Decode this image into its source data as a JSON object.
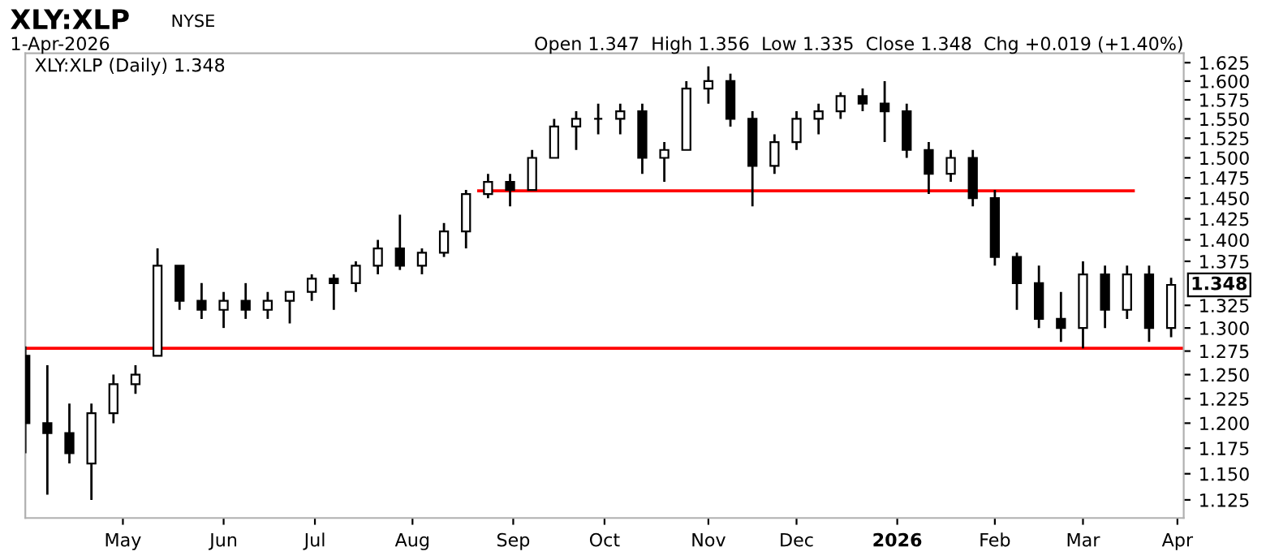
{
  "chart_data": {
    "type": "candlestick",
    "title": "XLY:XLP",
    "color": "#000000",
    "log": "y",
    "annotations": [
      "NYSE",
      "1-Apr-2026",
      "Open 1.347  High 1.356  Low 1.335  Close 1.348  Chg +0.019 (+1.40%)",
      "XLY:XLP (Daily) 1.348",
      {
        "text": "1.348",
        "x": "2026-04-01",
        "y": 1.348
      }
    ],
    "x": [
      "2025-03-31",
      "2025-04-07",
      "2025-04-14",
      "2025-04-21",
      "2025-04-28",
      "2025-05-05",
      "2025-05-12",
      "2025-05-19",
      "2025-05-26",
      "2025-06-02",
      "2025-06-09",
      "2025-06-16",
      "2025-06-23",
      "2025-06-30",
      "2025-07-07",
      "2025-07-14",
      "2025-07-21",
      "2025-07-28",
      "2025-08-04",
      "2025-08-11",
      "2025-08-18",
      "2025-08-25",
      "2025-09-01",
      "2025-09-08",
      "2025-09-15",
      "2025-09-22",
      "2025-09-29",
      "2025-10-06",
      "2025-10-13",
      "2025-10-20",
      "2025-10-27",
      "2025-11-03",
      "2025-11-10",
      "2025-11-17",
      "2025-11-24",
      "2025-12-01",
      "2025-12-08",
      "2025-12-15",
      "2025-12-22",
      "2025-12-29",
      "2026-01-05",
      "2026-01-12",
      "2026-01-19",
      "2026-01-26",
      "2026-02-02",
      "2026-02-09",
      "2026-02-16",
      "2026-02-23",
      "2026-03-02",
      "2026-03-09",
      "2026-03-16",
      "2026-03-23",
      "2026-03-30"
    ],
    "ohlc": [
      [
        1.27,
        1.28,
        1.17,
        1.2
      ],
      [
        1.2,
        1.26,
        1.13,
        1.19
      ],
      [
        1.19,
        1.22,
        1.16,
        1.17
      ],
      [
        1.16,
        1.22,
        1.125,
        1.21
      ],
      [
        1.21,
        1.25,
        1.2,
        1.24
      ],
      [
        1.24,
        1.26,
        1.23,
        1.25
      ],
      [
        1.27,
        1.39,
        1.27,
        1.37
      ],
      [
        1.37,
        1.37,
        1.32,
        1.33
      ],
      [
        1.33,
        1.35,
        1.31,
        1.32
      ],
      [
        1.32,
        1.34,
        1.3,
        1.33
      ],
      [
        1.33,
        1.35,
        1.31,
        1.32
      ],
      [
        1.32,
        1.34,
        1.31,
        1.33
      ],
      [
        1.33,
        1.34,
        1.305,
        1.34
      ],
      [
        1.34,
        1.36,
        1.33,
        1.355
      ],
      [
        1.355,
        1.36,
        1.32,
        1.35
      ],
      [
        1.35,
        1.375,
        1.34,
        1.37
      ],
      [
        1.37,
        1.4,
        1.36,
        1.39
      ],
      [
        1.39,
        1.43,
        1.365,
        1.37
      ],
      [
        1.37,
        1.39,
        1.36,
        1.385
      ],
      [
        1.385,
        1.42,
        1.38,
        1.41
      ],
      [
        1.41,
        1.46,
        1.39,
        1.455
      ],
      [
        1.455,
        1.48,
        1.45,
        1.47
      ],
      [
        1.47,
        1.48,
        1.44,
        1.46
      ],
      [
        1.46,
        1.51,
        1.46,
        1.5
      ],
      [
        1.5,
        1.55,
        1.5,
        1.54
      ],
      [
        1.54,
        1.56,
        1.51,
        1.55
      ],
      [
        1.55,
        1.57,
        1.53,
        1.55
      ],
      [
        1.55,
        1.57,
        1.53,
        1.56
      ],
      [
        1.56,
        1.57,
        1.48,
        1.5
      ],
      [
        1.5,
        1.52,
        1.47,
        1.51
      ],
      [
        1.51,
        1.6,
        1.51,
        1.59
      ],
      [
        1.59,
        1.62,
        1.57,
        1.6
      ],
      [
        1.6,
        1.61,
        1.54,
        1.55
      ],
      [
        1.55,
        1.56,
        1.44,
        1.49
      ],
      [
        1.49,
        1.53,
        1.48,
        1.52
      ],
      [
        1.52,
        1.56,
        1.51,
        1.55
      ],
      [
        1.55,
        1.57,
        1.53,
        1.56
      ],
      [
        1.56,
        1.585,
        1.55,
        1.58
      ],
      [
        1.58,
        1.59,
        1.56,
        1.57
      ],
      [
        1.57,
        1.6,
        1.52,
        1.56
      ],
      [
        1.56,
        1.57,
        1.5,
        1.51
      ],
      [
        1.51,
        1.52,
        1.455,
        1.48
      ],
      [
        1.48,
        1.51,
        1.47,
        1.5
      ],
      [
        1.5,
        1.51,
        1.44,
        1.45
      ],
      [
        1.45,
        1.46,
        1.37,
        1.38
      ],
      [
        1.38,
        1.385,
        1.32,
        1.35
      ],
      [
        1.35,
        1.37,
        1.3,
        1.31
      ],
      [
        1.31,
        1.34,
        1.285,
        1.3
      ],
      [
        1.3,
        1.375,
        1.278,
        1.36
      ],
      [
        1.36,
        1.37,
        1.3,
        1.32
      ],
      [
        1.32,
        1.37,
        1.31,
        1.36
      ],
      [
        1.36,
        1.37,
        1.285,
        1.3
      ],
      [
        1.3,
        1.356,
        1.29,
        1.348
      ]
    ],
    "series": [
      {
        "type": "line",
        "x": [
          "2025-08-22",
          "2026-03-18"
        ],
        "values": [
          1.459,
          1.459
        ],
        "color": "#ff0000"
      }
    ],
    "ref_lines": [
      {
        "axis": "y",
        "value": 1.278,
        "color": "#ff0000"
      }
    ],
    "xlim": [
      "2025-03-31",
      "2026-04-03"
    ],
    "xticks": [
      {
        "value": "2025-05-01",
        "label": "May"
      },
      {
        "value": "2025-06-02",
        "label": "Jun"
      },
      {
        "value": "2025-07-01",
        "label": "Jul"
      },
      {
        "value": "2025-08-01",
        "label": "Aug"
      },
      {
        "value": "2025-09-02",
        "label": "Sep"
      },
      {
        "value": "2025-10-01",
        "label": "Oct"
      },
      {
        "value": "2025-11-03",
        "label": "Nov"
      },
      {
        "value": "2025-12-01",
        "label": "Dec"
      },
      {
        "value": "2026-01-02",
        "label": "2026"
      },
      {
        "value": "2026-02-02",
        "label": "Feb"
      },
      {
        "value": "2026-03-02",
        "label": "Mar"
      },
      {
        "value": "2026-04-01",
        "label": "Apr"
      }
    ],
    "ylim": [
      1.108,
      1.638
    ],
    "yticks": [
      {
        "value": 1.125,
        "label": "1.125"
      },
      {
        "value": 1.15,
        "label": "1.150"
      },
      {
        "value": 1.175,
        "label": "1.175"
      },
      {
        "value": 1.2,
        "label": "1.200"
      },
      {
        "value": 1.225,
        "label": "1.225"
      },
      {
        "value": 1.25,
        "label": "1.250"
      },
      {
        "value": 1.275,
        "label": "1.275"
      },
      {
        "value": 1.3,
        "label": "1.300"
      },
      {
        "value": 1.325,
        "label": "1.325"
      },
      {
        "value": 1.375,
        "label": "1.375"
      },
      {
        "value": 1.4,
        "label": "1.400"
      },
      {
        "value": 1.425,
        "label": "1.425"
      },
      {
        "value": 1.45,
        "label": "1.450"
      },
      {
        "value": 1.475,
        "label": "1.475"
      },
      {
        "value": 1.5,
        "label": "1.500"
      },
      {
        "value": 1.525,
        "label": "1.525"
      },
      {
        "value": 1.55,
        "label": "1.550"
      },
      {
        "value": 1.575,
        "label": "1.575"
      },
      {
        "value": 1.6,
        "label": "1.600"
      },
      {
        "value": 1.625,
        "label": "1.625"
      }
    ],
    "grid": false,
    "marker": "none",
    "line_style": "solid"
  }
}
